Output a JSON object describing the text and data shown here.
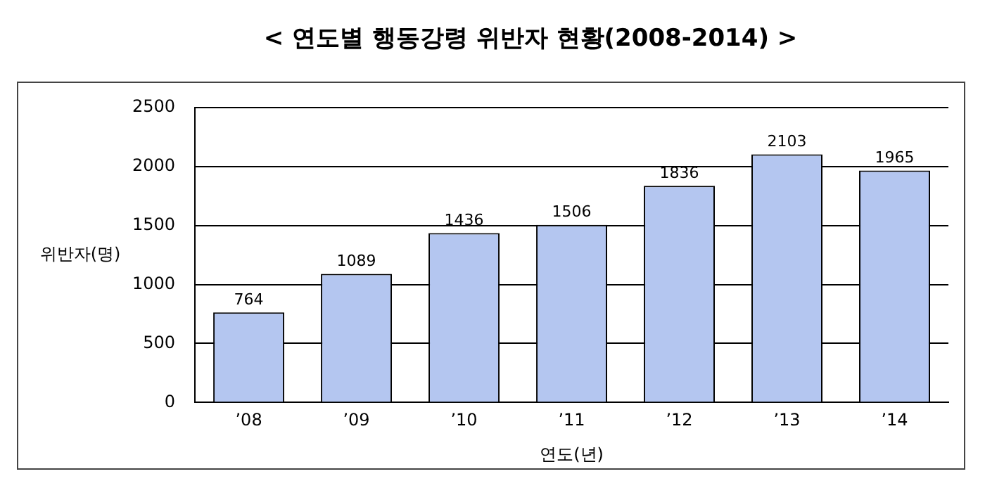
{
  "chart_data": {
    "type": "bar",
    "title": "< 연도별 행동강령 위반자 현황(2008-2014) >",
    "xlabel": "연도(년)",
    "ylabel": "위반자(명)",
    "categories": [
      "’08",
      "’09",
      "’10",
      "’11",
      "’12",
      "’13",
      "’14"
    ],
    "values": [
      764,
      1089,
      1436,
      1506,
      1836,
      2103,
      1965
    ],
    "color": "#b4c6f0",
    "ylim": [
      0,
      2500
    ],
    "yticks": [
      0,
      500,
      1000,
      1500,
      2000,
      2500
    ],
    "grid": "y",
    "data_labels": true,
    "legend": false
  }
}
